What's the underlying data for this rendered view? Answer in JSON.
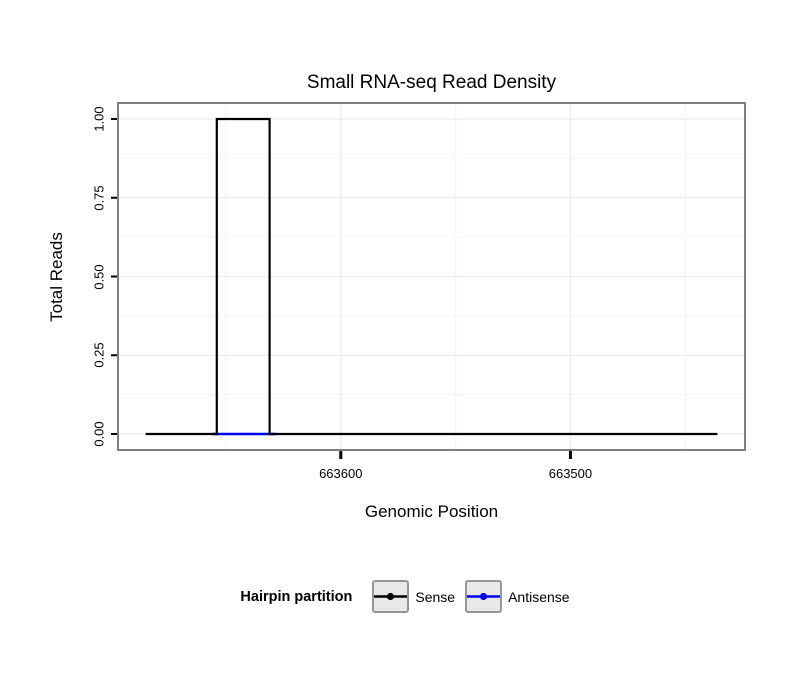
{
  "chart_data": {
    "type": "line",
    "title": "Small RNA-seq Read Density",
    "xlabel": "Genomic Position",
    "ylabel": "Total Reads",
    "legend_title": "Hairpin partition",
    "x_axis_reversed": true,
    "x_domain_left": 663697,
    "x_domain_right": 663424,
    "x_major_ticks": [
      663600,
      663500
    ],
    "x_tick_labels": [
      "663600",
      "663500"
    ],
    "x_minor_gridlines": [
      663650,
      663550,
      663450
    ],
    "y_tick_values": [
      0,
      0.25,
      0.5,
      0.75,
      1
    ],
    "y_ticks": [
      "0.00",
      "0.25",
      "0.50",
      "0.75",
      "1.00"
    ],
    "y_minor_gridlines": [
      0.125,
      0.375,
      0.625,
      0.875
    ],
    "ylim": [
      0,
      1
    ],
    "series": [
      {
        "name": "Sense",
        "color": "#000000",
        "line_width": 2.2,
        "points": [
          [
            663685,
            0
          ],
          [
            663654,
            0
          ],
          [
            663654,
            1
          ],
          [
            663631,
            1
          ],
          [
            663631,
            0
          ],
          [
            663436,
            0
          ]
        ]
      },
      {
        "name": "Antisense",
        "color": "#0000EE",
        "line_width": 2.4,
        "points": [
          [
            663656,
            0
          ],
          [
            663628,
            0
          ]
        ]
      }
    ],
    "style": {
      "panel_border_color": "#7f7f7f",
      "major_grid_color": "#ececec",
      "minor_grid_color": "#f5f5f5",
      "tick_color": "#000000"
    }
  }
}
